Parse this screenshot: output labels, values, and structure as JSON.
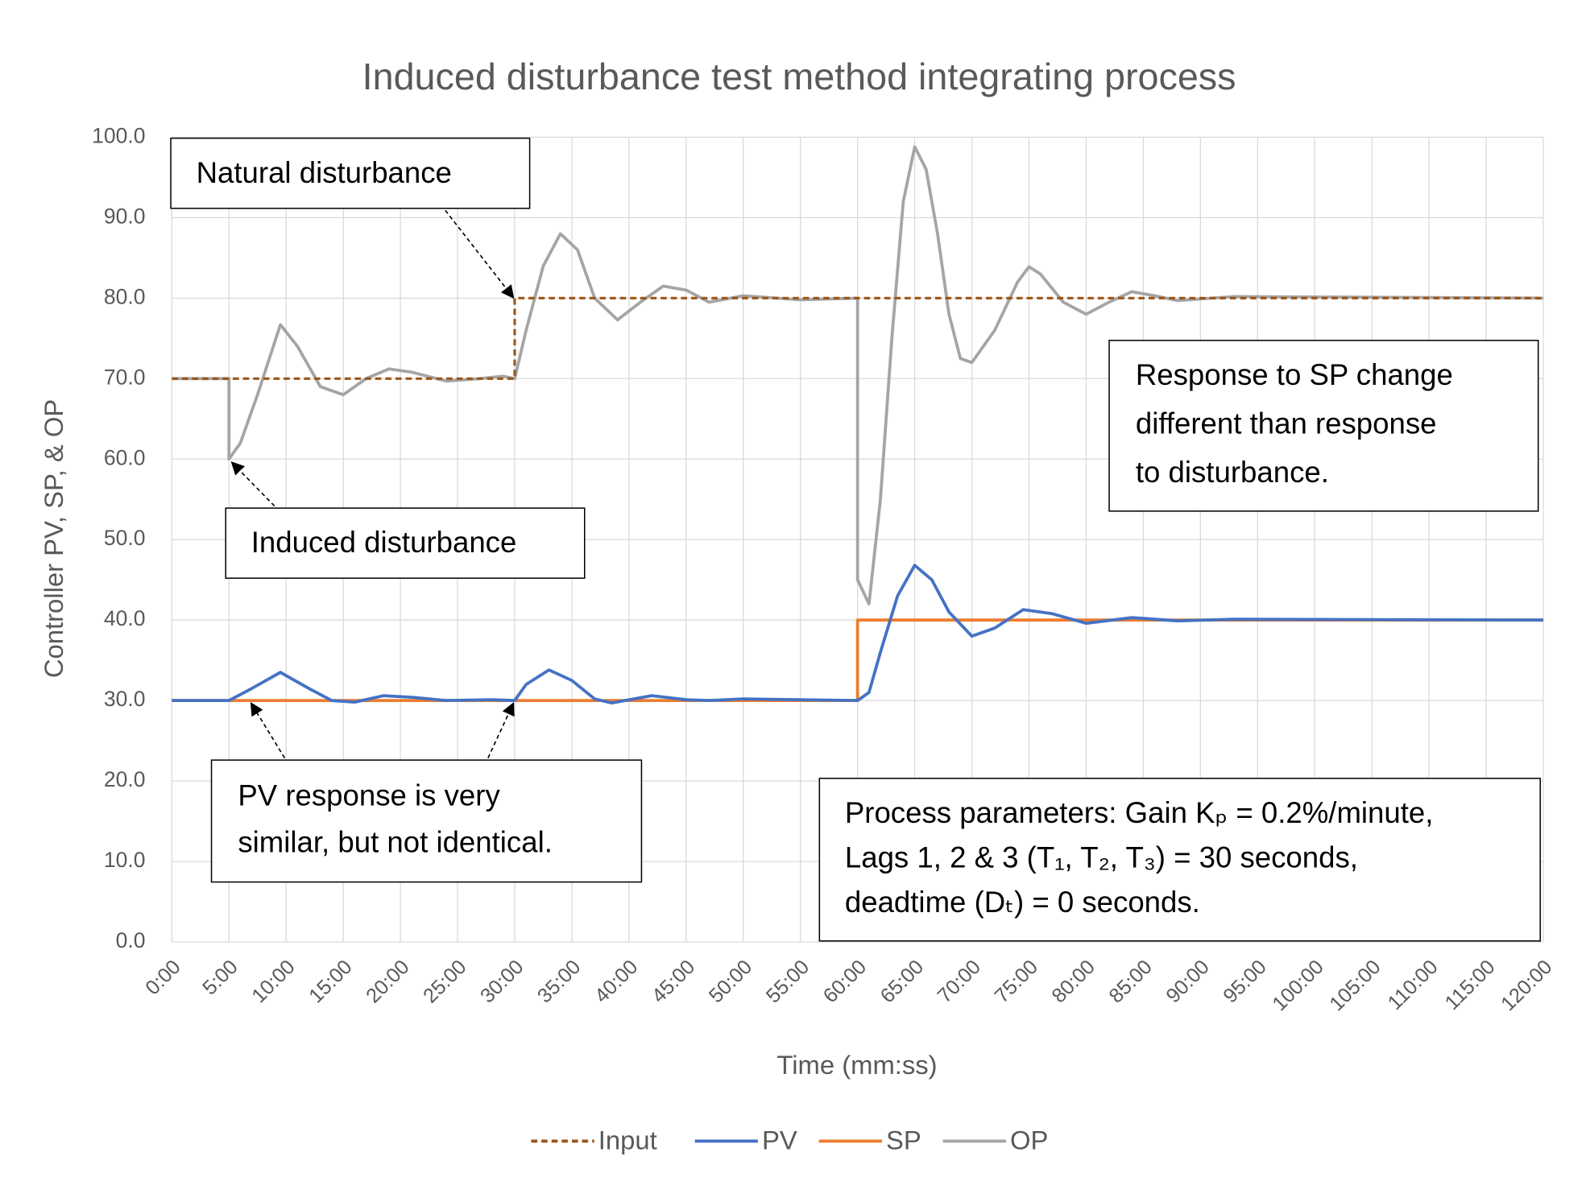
{
  "chart_data": {
    "type": "line",
    "title": "Induced disturbance test method integrating process",
    "x_label": "Time (mm:ss)",
    "y_label": "Controller PV, SP, & OP",
    "xlim": [
      0,
      120
    ],
    "xticks": [
      {
        "value": 0,
        "label": "0:00"
      },
      {
        "value": 5,
        "label": "5:00"
      },
      {
        "value": 10,
        "label": "10:00"
      },
      {
        "value": 15,
        "label": "15:00"
      },
      {
        "value": 20,
        "label": "20:00"
      },
      {
        "value": 25,
        "label": "25:00"
      },
      {
        "value": 30,
        "label": "30:00"
      },
      {
        "value": 35,
        "label": "35:00"
      },
      {
        "value": 40,
        "label": "40:00"
      },
      {
        "value": 45,
        "label": "45:00"
      },
      {
        "value": 50,
        "label": "50:00"
      },
      {
        "value": 55,
        "label": "55:00"
      },
      {
        "value": 60,
        "label": "60:00"
      },
      {
        "value": 65,
        "label": "65:00"
      },
      {
        "value": 70,
        "label": "70:00"
      },
      {
        "value": 75,
        "label": "75:00"
      },
      {
        "value": 80,
        "label": "80:00"
      },
      {
        "value": 85,
        "label": "85:00"
      },
      {
        "value": 90,
        "label": "90:00"
      },
      {
        "value": 95,
        "label": "95:00"
      },
      {
        "value": 100,
        "label": "100:00"
      },
      {
        "value": 105,
        "label": "105:00"
      },
      {
        "value": 110,
        "label": "110:00"
      },
      {
        "value": 115,
        "label": "115:00"
      },
      {
        "value": 120,
        "label": "120:00"
      }
    ],
    "ylim": [
      0,
      100
    ],
    "yticks": [
      {
        "value": 0,
        "label": "0.0"
      },
      {
        "value": 10,
        "label": "10.0"
      },
      {
        "value": 20,
        "label": "20.0"
      },
      {
        "value": 30,
        "label": "30.0"
      },
      {
        "value": 40,
        "label": "40.0"
      },
      {
        "value": 50,
        "label": "50.0"
      },
      {
        "value": 60,
        "label": "60.0"
      },
      {
        "value": 70,
        "label": "70.0"
      },
      {
        "value": 80,
        "label": "80.0"
      },
      {
        "value": 90,
        "label": "90.0"
      },
      {
        "value": 100,
        "label": "100.0"
      }
    ],
    "grid": true,
    "legend": "bottom",
    "series": [
      {
        "name": "Input",
        "color": "#9c5516",
        "dashed": true,
        "x": [
          0,
          30,
          30,
          120
        ],
        "values": [
          70,
          70,
          80,
          80
        ]
      },
      {
        "name": "PV",
        "color": "#4472c4",
        "dashed": false,
        "x": [
          0,
          5,
          7,
          9.5,
          12,
          14,
          16,
          18.5,
          21,
          24,
          28,
          30,
          31,
          33,
          35,
          37,
          38.5,
          42,
          45,
          47,
          50,
          60,
          61,
          62,
          63.5,
          65,
          66.5,
          68,
          70,
          72,
          74.5,
          77,
          80,
          84,
          88,
          93,
          120
        ],
        "values": [
          30,
          30,
          31.5,
          33.5,
          31.5,
          30,
          29.8,
          30.6,
          30.4,
          30,
          30.1,
          30,
          32,
          33.8,
          32.5,
          30.2,
          29.7,
          30.6,
          30.1,
          30,
          30.2,
          30,
          31,
          36,
          43,
          46.8,
          45,
          41,
          38,
          39,
          41.3,
          40.8,
          39.6,
          40.3,
          39.9,
          40.1,
          40
        ]
      },
      {
        "name": "SP",
        "color": "#ed7d31",
        "dashed": false,
        "x": [
          0,
          60,
          60,
          120
        ],
        "values": [
          30,
          30,
          40,
          40
        ]
      },
      {
        "name": "OP",
        "color": "#a5a5a5",
        "dashed": false,
        "x": [
          0,
          5,
          5,
          6,
          7.5,
          9.5,
          11,
          13,
          15,
          17,
          19,
          21,
          24,
          27,
          29,
          30,
          31,
          32.5,
          34,
          35.5,
          37,
          39,
          41,
          43,
          45,
          47,
          50,
          55,
          60,
          60,
          61,
          62,
          63,
          64,
          65,
          66,
          67,
          68,
          69,
          70,
          72,
          74,
          75,
          76,
          78,
          80,
          82,
          84,
          86,
          88,
          93,
          120
        ],
        "values": [
          70,
          70,
          60,
          62,
          68,
          76.7,
          74,
          69,
          68,
          70,
          71.2,
          70.8,
          69.7,
          70,
          70.3,
          70,
          76,
          84,
          88,
          86,
          80,
          77.3,
          79.5,
          81.5,
          81,
          79.5,
          80.3,
          79.8,
          80,
          45,
          42,
          55,
          75,
          92,
          98.8,
          96,
          88,
          78,
          72.5,
          72,
          76,
          82,
          83.9,
          83,
          79.5,
          78,
          79.5,
          80.8,
          80.3,
          79.7,
          80.2,
          80
        ]
      }
    ],
    "annotations": [
      {
        "lines": [
          "Natural disturbance"
        ]
      },
      {
        "lines": [
          "Induced disturbance"
        ]
      },
      {
        "lines": [
          "PV response is very",
          "similar, but not identical."
        ]
      },
      {
        "lines": [
          "Response to SP change",
          "different than response",
          "to disturbance."
        ]
      },
      {
        "lines": [
          "Process parameters: Gain Kₚ = 0.2%/minute,",
          "Lags 1, 2 & 3 (T₁, T₂, T₃) = 30 seconds,",
          "deadtime (Dₜ) = 0 seconds."
        ]
      }
    ]
  }
}
